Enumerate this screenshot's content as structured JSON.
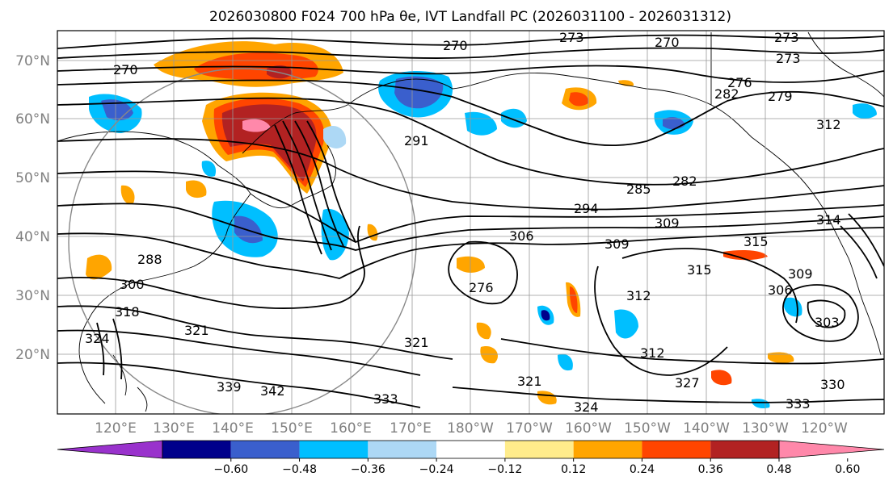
{
  "title": {
    "text": "2026030800 F024 700 hPa θe, IVT Landfall PC (2026031100 - 2026031312)"
  },
  "map": {
    "lat_labels": [
      "70°N",
      "60°N",
      "50°N",
      "40°N",
      "30°N",
      "20°N"
    ],
    "lon_labels": [
      "120°E",
      "130°E",
      "140°E",
      "150°E",
      "160°E",
      "170°E",
      "180°W",
      "170°W",
      "160°W",
      "150°W",
      "140°W",
      "130°W",
      "120°W"
    ],
    "contour_labels": [
      "270",
      "273",
      "276",
      "270",
      "273",
      "273",
      "276",
      "282",
      "279",
      "270",
      "291",
      "285",
      "282",
      "294",
      "306",
      "309",
      "309",
      "312",
      "315",
      "314",
      "315",
      "309",
      "306",
      "303",
      "288",
      "300",
      "318",
      "321",
      "324",
      "312",
      "312",
      "321",
      "327",
      "330",
      "333",
      "333",
      "339",
      "342",
      "324",
      "321"
    ]
  },
  "chart_data": {
    "type": "heatmap",
    "title": "2026030800 F024 700 hPa θe, IVT Landfall PC (2026031100 - 2026031312)",
    "colorbar": {
      "ticks": [
        "−0.60",
        "−0.48",
        "−0.36",
        "−0.24",
        "−0.12",
        "0.12",
        "0.24",
        "0.36",
        "0.48",
        "0.60"
      ],
      "bins": [
        {
          "range": "< -0.60",
          "color": "#9932cc"
        },
        {
          "range": "-0.60 to -0.48",
          "color": "#00008b"
        },
        {
          "range": "-0.48 to -0.36",
          "color": "#3a5fcd"
        },
        {
          "range": "-0.36 to -0.24",
          "color": "#00bfff"
        },
        {
          "range": "-0.24 to -0.12",
          "color": "#add8f5"
        },
        {
          "range": "-0.12 to 0.12",
          "color": "#ffffff"
        },
        {
          "range": "0.12 to 0.24",
          "color": "#ffec8b"
        },
        {
          "range": "0.24 to 0.36",
          "color": "#ffa500"
        },
        {
          "range": "0.36 to 0.48",
          "color": "#ff4500"
        },
        {
          "range": "0.48 to 0.60",
          "color": "#b22222"
        },
        {
          "range": "> 0.60",
          "color": "#ff88aa"
        }
      ]
    },
    "lat_range": [
      10,
      75
    ],
    "lon_range": [
      "110°E",
      "110°W"
    ],
    "contour_variable": "700 hPa θe (K)"
  }
}
